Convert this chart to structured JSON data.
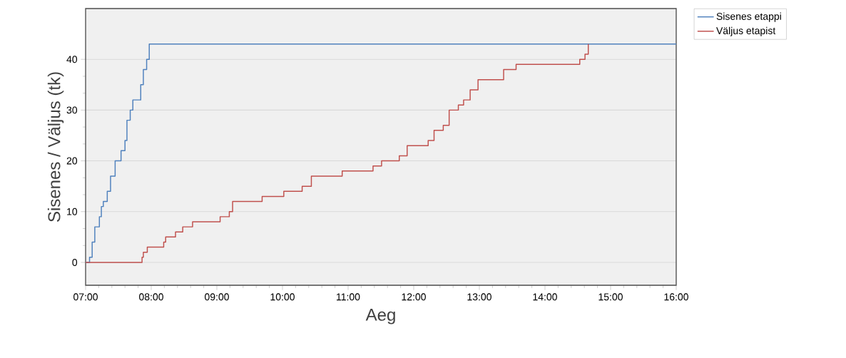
{
  "chart_data": {
    "type": "step",
    "xlabel": "Aeg",
    "ylabel": "Sisenes / Väljus (tk)",
    "xlim": [
      7,
      16
    ],
    "ylim": [
      -4.5,
      50
    ],
    "xticks": [
      {
        "value": 7,
        "label": "07:00"
      },
      {
        "value": 8,
        "label": "08:00"
      },
      {
        "value": 9,
        "label": "09:00"
      },
      {
        "value": 10,
        "label": "10:00"
      },
      {
        "value": 11,
        "label": "11:00"
      },
      {
        "value": 12,
        "label": "12:00"
      },
      {
        "value": 13,
        "label": "13:00"
      },
      {
        "value": 14,
        "label": "14:00"
      },
      {
        "value": 15,
        "label": "15:00"
      },
      {
        "value": 16,
        "label": "16:00"
      }
    ],
    "yticks": [
      0,
      10,
      20,
      30,
      40
    ],
    "grid": "y",
    "legend": "top right",
    "series": [
      {
        "name": "Sisenes etappi",
        "color": "#4f81bd",
        "x": [
          7.0,
          7.06,
          7.1,
          7.14,
          7.21,
          7.24,
          7.27,
          7.33,
          7.38,
          7.45,
          7.54,
          7.6,
          7.63,
          7.68,
          7.72,
          7.84,
          7.88,
          7.93,
          7.97,
          16
        ],
        "values": [
          0,
          1,
          4,
          7,
          9,
          11,
          12,
          14,
          17,
          20,
          22,
          24,
          28,
          30,
          32,
          35,
          38,
          40,
          43,
          43
        ]
      },
      {
        "name": "Väljus etapist",
        "color": "#c0504d",
        "x": [
          7.0,
          7.86,
          7.88,
          7.94,
          7.99,
          8.19,
          8.22,
          8.37,
          8.48,
          8.63,
          9.05,
          9.19,
          9.24,
          9.69,
          10.02,
          10.3,
          10.44,
          10.91,
          11.38,
          11.51,
          11.78,
          11.9,
          12.22,
          12.31,
          12.45,
          12.54,
          12.68,
          12.76,
          12.86,
          12.98,
          13.37,
          13.56,
          14.53,
          14.61,
          14.66
        ],
        "values": [
          0,
          1,
          2,
          3,
          3,
          4,
          5,
          6,
          7,
          8,
          9,
          10,
          12,
          13,
          14,
          15,
          17,
          18,
          19,
          20,
          21,
          23,
          24,
          26,
          27,
          30,
          31,
          32,
          34,
          36,
          38,
          39,
          40,
          41,
          43
        ]
      }
    ]
  }
}
